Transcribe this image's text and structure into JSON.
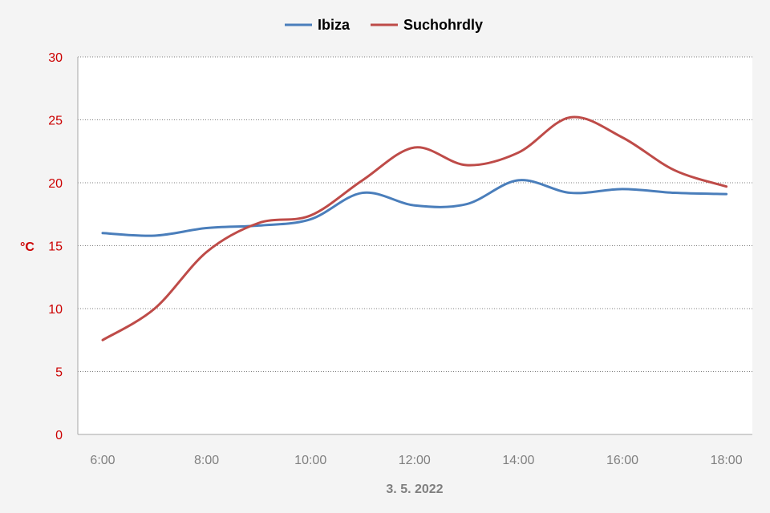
{
  "chart_data": {
    "type": "line",
    "x": [
      "6:00",
      "7:00",
      "8:00",
      "9:00",
      "10:00",
      "11:00",
      "12:00",
      "13:00",
      "14:00",
      "15:00",
      "16:00",
      "17:00",
      "18:00"
    ],
    "x_tick_labels": [
      "6:00",
      "8:00",
      "10:00",
      "12:00",
      "14:00",
      "16:00",
      "18:00"
    ],
    "series": [
      {
        "name": "Ibiza",
        "color": "#4a7ebb",
        "values": [
          16.0,
          15.8,
          16.4,
          16.6,
          17.1,
          19.2,
          18.2,
          18.3,
          20.2,
          19.2,
          19.5,
          19.2,
          19.1
        ]
      },
      {
        "name": "Suchohrdly",
        "color": "#be4b48",
        "values": [
          7.5,
          10.0,
          14.5,
          16.8,
          17.4,
          20.2,
          22.8,
          21.4,
          22.4,
          25.2,
          23.6,
          21.0,
          19.7
        ]
      }
    ],
    "title": "",
    "xlabel": "3. 5. 2022",
    "ylabel": "°C",
    "ylim": [
      0,
      30
    ],
    "y_ticks": [
      0,
      5,
      10,
      15,
      20,
      25,
      30
    ],
    "grid": true,
    "legend_position": "top-center",
    "colors": {
      "y_axis_text": "#cc0000",
      "x_axis_text": "#7f7f7f",
      "grid": "#808080",
      "axis": "#a6a6a6",
      "background": "#f4f4f4",
      "plot_background": "#ffffff"
    }
  }
}
